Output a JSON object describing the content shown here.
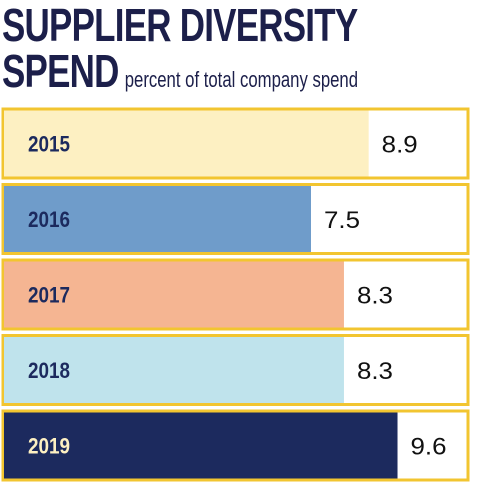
{
  "header": {
    "title_line1": "SUPPLIER DIVERSITY",
    "title_line2": "SPEND",
    "subtitle": "percent of total company spend"
  },
  "chart_data": {
    "type": "bar",
    "orientation": "horizontal",
    "title": "SUPPLIER DIVERSITY SPEND",
    "subtitle": "percent of total company spend",
    "categories": [
      "2015",
      "2016",
      "2017",
      "2018",
      "2019"
    ],
    "values": [
      8.9,
      7.5,
      8.3,
      8.3,
      9.6
    ],
    "value_labels": [
      "8.9",
      "7.5",
      "8.3",
      "8.3",
      "9.6"
    ],
    "bar_colors": [
      "#fdf0c2",
      "#6f9cca",
      "#f5b592",
      "#bfe3ec",
      "#1c2a5e"
    ],
    "label_colors": [
      "#1c2a5e",
      "#1c2a5e",
      "#1c2a5e",
      "#1c2a5e",
      "#fdf0c2"
    ],
    "border_color": "#f2c530",
    "xlim": [
      0,
      10.2
    ],
    "grid": false,
    "legend": "none"
  }
}
